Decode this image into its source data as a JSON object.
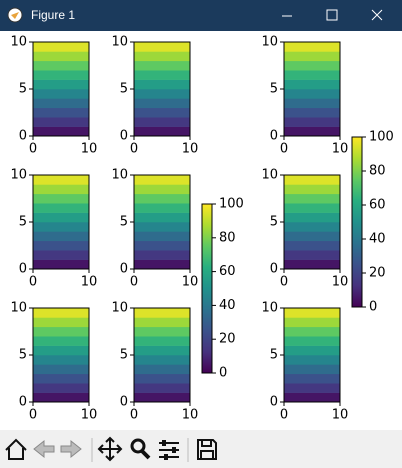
{
  "window": {
    "title": "Figure 1"
  },
  "chart_data": [
    {
      "type": "heatmap",
      "values": [
        5,
        15,
        25,
        35,
        45,
        55,
        65,
        75,
        85,
        95
      ],
      "xlim": [
        0,
        10
      ],
      "ylim": [
        0,
        10
      ],
      "xticks": [
        0,
        10
      ],
      "yticks": [
        0,
        5,
        10
      ],
      "clim": [
        0,
        100
      ],
      "colormap": "viridis"
    },
    {
      "type": "heatmap",
      "values": [
        5,
        15,
        25,
        35,
        45,
        55,
        65,
        75,
        85,
        95
      ],
      "xlim": [
        0,
        10
      ],
      "ylim": [
        0,
        10
      ],
      "xticks": [
        0,
        10
      ],
      "yticks": [
        0,
        5,
        10
      ],
      "clim": [
        0,
        100
      ],
      "colormap": "viridis"
    },
    {
      "type": "heatmap",
      "values": [
        5,
        15,
        25,
        35,
        45,
        55,
        65,
        75,
        85,
        95
      ],
      "xlim": [
        0,
        10
      ],
      "ylim": [
        0,
        10
      ],
      "xticks": [
        0,
        10
      ],
      "yticks": [
        0,
        5,
        10
      ],
      "clim": [
        0,
        100
      ],
      "colormap": "viridis"
    },
    {
      "type": "heatmap",
      "values": [
        5,
        15,
        25,
        35,
        45,
        55,
        65,
        75,
        85,
        95
      ],
      "xlim": [
        0,
        10
      ],
      "ylim": [
        0,
        10
      ],
      "xticks": [
        0,
        10
      ],
      "yticks": [
        0,
        5,
        10
      ],
      "clim": [
        0,
        100
      ],
      "colormap": "viridis"
    },
    {
      "type": "heatmap",
      "values": [
        5,
        15,
        25,
        35,
        45,
        55,
        65,
        75,
        85,
        95
      ],
      "xlim": [
        0,
        10
      ],
      "ylim": [
        0,
        10
      ],
      "xticks": [
        0,
        10
      ],
      "yticks": [
        0,
        5,
        10
      ],
      "clim": [
        0,
        100
      ],
      "colormap": "viridis"
    },
    {
      "type": "heatmap",
      "values": [
        5,
        15,
        25,
        35,
        45,
        55,
        65,
        75,
        85,
        95
      ],
      "xlim": [
        0,
        10
      ],
      "ylim": [
        0,
        10
      ],
      "xticks": [
        0,
        10
      ],
      "yticks": [
        0,
        5,
        10
      ],
      "clim": [
        0,
        100
      ],
      "colormap": "viridis"
    },
    {
      "type": "heatmap",
      "values": [
        5,
        15,
        25,
        35,
        45,
        55,
        65,
        75,
        85,
        95
      ],
      "xlim": [
        0,
        10
      ],
      "ylim": [
        0,
        10
      ],
      "xticks": [
        0,
        10
      ],
      "yticks": [
        0,
        5,
        10
      ],
      "clim": [
        0,
        100
      ],
      "colormap": "viridis"
    },
    {
      "type": "heatmap",
      "values": [
        5,
        15,
        25,
        35,
        45,
        55,
        65,
        75,
        85,
        95
      ],
      "xlim": [
        0,
        10
      ],
      "ylim": [
        0,
        10
      ],
      "xticks": [
        0,
        10
      ],
      "yticks": [
        0,
        5,
        10
      ],
      "clim": [
        0,
        100
      ],
      "colormap": "viridis"
    },
    {
      "type": "heatmap",
      "values": [
        5,
        15,
        25,
        35,
        45,
        55,
        65,
        75,
        85,
        95
      ],
      "xlim": [
        0,
        10
      ],
      "ylim": [
        0,
        10
      ],
      "xticks": [
        0,
        10
      ],
      "yticks": [
        0,
        5,
        10
      ],
      "clim": [
        0,
        100
      ],
      "colormap": "viridis"
    },
    {
      "type": "colorbar",
      "ylim": [
        0,
        100
      ],
      "yticks": [
        0,
        20,
        40,
        60,
        80,
        100
      ],
      "colormap": "viridis"
    },
    {
      "type": "colorbar",
      "ylim": [
        0,
        100
      ],
      "yticks": [
        0,
        20,
        40,
        60,
        80,
        100
      ],
      "colormap": "viridis"
    }
  ]
}
